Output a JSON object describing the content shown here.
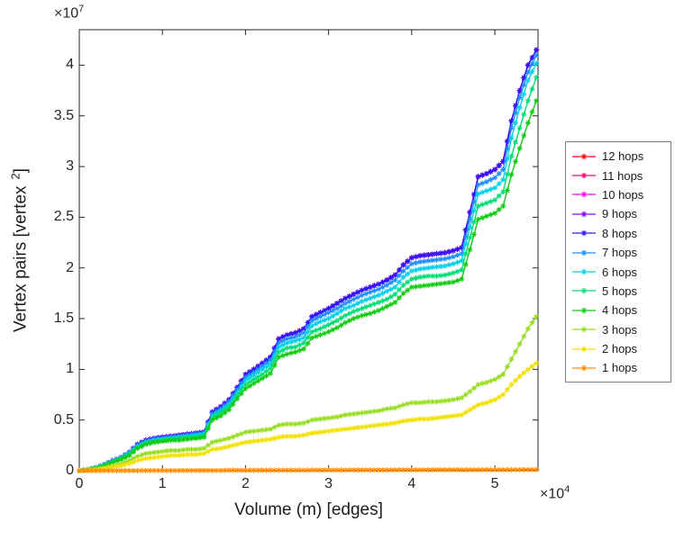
{
  "figure": {
    "background": "#ffffff",
    "axis_color": "#262626",
    "x_axis": {
      "label": "Volume (m) [edges]",
      "exponent_base": "×10",
      "exponent_power": "4",
      "ticks": [
        0,
        1,
        2,
        3,
        4,
        5
      ],
      "tick_labels": [
        "0",
        "1",
        "2",
        "3",
        "4",
        "5"
      ],
      "lim": [
        0,
        5.52
      ]
    },
    "y_axis": {
      "label_main": "Vertex pairs [vertex",
      "label_sup": "2",
      "label_close": "]",
      "exponent_base": "×10",
      "exponent_power": "7",
      "ticks": [
        0,
        0.5,
        1,
        1.5,
        2,
        2.5,
        3,
        3.5,
        4
      ],
      "tick_labels": [
        "0",
        "0.5",
        "1",
        "1.5",
        "2",
        "2.5",
        "3",
        "3.5",
        "4"
      ],
      "lim": [
        0,
        4.35
      ]
    }
  },
  "chart_data": {
    "type": "line",
    "title": "",
    "xlabel": "Volume (m) [edges]",
    "ylabel": "Vertex pairs [vertex^2]",
    "x_units": "edges (values in units of 1e4)",
    "y_units": "vertex pairs (values in units of 1e7)",
    "xlim": [
      0,
      5.52
    ],
    "ylim": [
      0,
      4.35
    ],
    "grid": false,
    "legend_position": "right-outside",
    "marker": "asterisk",
    "x": [
      0,
      0.1,
      0.2,
      0.3,
      0.4,
      0.5,
      0.6,
      0.7,
      0.8,
      0.9,
      1,
      1.1,
      1.2,
      1.3,
      1.4,
      1.5,
      1.6,
      1.7,
      1.8,
      1.9,
      2,
      2.1,
      2.2,
      2.3,
      2.4,
      2.5,
      2.6,
      2.7,
      2.8,
      2.9,
      3,
      3.1,
      3.2,
      3.3,
      3.4,
      3.5,
      3.6,
      3.7,
      3.8,
      3.9,
      4,
      4.1,
      4.2,
      4.3,
      4.4,
      4.5,
      4.6,
      4.7,
      4.8,
      4.9,
      5,
      5.1,
      5.2,
      5.3,
      5.4,
      5.5
    ],
    "series": [
      {
        "name": "12 hops",
        "color": "#ff0000",
        "values": [
          0,
          0.01,
          0.03,
          0.06,
          0.1,
          0.13,
          0.18,
          0.26,
          0.3,
          0.32,
          0.33,
          0.34,
          0.35,
          0.36,
          0.37,
          0.38,
          0.58,
          0.63,
          0.7,
          0.82,
          0.95,
          1,
          1.06,
          1.12,
          1.3,
          1.34,
          1.36,
          1.4,
          1.52,
          1.56,
          1.6,
          1.65,
          1.7,
          1.74,
          1.78,
          1.81,
          1.84,
          1.88,
          1.93,
          2.03,
          2.1,
          2.12,
          2.13,
          2.14,
          2.15,
          2.17,
          2.2,
          2.55,
          2.9,
          2.93,
          2.97,
          3.05,
          3.45,
          3.75,
          4,
          4.15
        ]
      },
      {
        "name": "11 hops",
        "color": "#ff0073",
        "values": [
          0,
          0.01,
          0.03,
          0.06,
          0.1,
          0.13,
          0.18,
          0.26,
          0.3,
          0.32,
          0.33,
          0.34,
          0.35,
          0.36,
          0.37,
          0.38,
          0.58,
          0.63,
          0.7,
          0.82,
          0.95,
          1,
          1.06,
          1.12,
          1.3,
          1.34,
          1.36,
          1.4,
          1.52,
          1.56,
          1.6,
          1.65,
          1.7,
          1.74,
          1.78,
          1.81,
          1.84,
          1.88,
          1.93,
          2.03,
          2.1,
          2.12,
          2.13,
          2.14,
          2.15,
          2.17,
          2.2,
          2.55,
          2.9,
          2.93,
          2.97,
          3.05,
          3.45,
          3.75,
          4,
          4.15
        ]
      },
      {
        "name": "10 hops",
        "color": "#ff00e6",
        "values": [
          0,
          0.01,
          0.03,
          0.06,
          0.1,
          0.13,
          0.18,
          0.26,
          0.3,
          0.32,
          0.33,
          0.34,
          0.35,
          0.36,
          0.37,
          0.38,
          0.58,
          0.63,
          0.7,
          0.82,
          0.95,
          1,
          1.06,
          1.12,
          1.3,
          1.34,
          1.36,
          1.4,
          1.52,
          1.56,
          1.6,
          1.65,
          1.7,
          1.74,
          1.78,
          1.81,
          1.84,
          1.88,
          1.93,
          2.03,
          2.1,
          2.12,
          2.13,
          2.14,
          2.15,
          2.17,
          2.2,
          2.55,
          2.9,
          2.93,
          2.97,
          3.05,
          3.45,
          3.75,
          4,
          4.15
        ]
      },
      {
        "name": "9 hops",
        "color": "#8800ff",
        "values": [
          0,
          0.01,
          0.03,
          0.06,
          0.1,
          0.13,
          0.18,
          0.26,
          0.3,
          0.32,
          0.33,
          0.34,
          0.35,
          0.36,
          0.37,
          0.38,
          0.58,
          0.63,
          0.7,
          0.82,
          0.95,
          1,
          1.06,
          1.12,
          1.3,
          1.34,
          1.36,
          1.4,
          1.52,
          1.56,
          1.6,
          1.65,
          1.7,
          1.74,
          1.78,
          1.81,
          1.84,
          1.88,
          1.93,
          2.03,
          2.1,
          2.12,
          2.13,
          2.14,
          2.15,
          2.17,
          2.2,
          2.55,
          2.9,
          2.93,
          2.97,
          3.05,
          3.45,
          3.75,
          4,
          4.15
        ]
      },
      {
        "name": "8 hops",
        "color": "#2b16ff",
        "values": [
          0,
          0.01,
          0.03,
          0.06,
          0.1,
          0.13,
          0.18,
          0.26,
          0.3,
          0.32,
          0.33,
          0.34,
          0.35,
          0.36,
          0.37,
          0.38,
          0.58,
          0.63,
          0.7,
          0.82,
          0.95,
          1,
          1.06,
          1.12,
          1.3,
          1.34,
          1.36,
          1.4,
          1.52,
          1.56,
          1.6,
          1.65,
          1.7,
          1.74,
          1.78,
          1.81,
          1.84,
          1.88,
          1.93,
          2.03,
          2.1,
          2.12,
          2.13,
          2.14,
          2.15,
          2.17,
          2.2,
          2.55,
          2.9,
          2.93,
          2.97,
          3.05,
          3.45,
          3.75,
          4,
          4.15
        ]
      },
      {
        "name": "7 hops",
        "color": "#1f8fff",
        "values": [
          0,
          0.01,
          0.03,
          0.06,
          0.1,
          0.13,
          0.18,
          0.25,
          0.29,
          0.31,
          0.32,
          0.33,
          0.34,
          0.35,
          0.36,
          0.37,
          0.56,
          0.61,
          0.68,
          0.8,
          0.92,
          0.97,
          1.03,
          1.09,
          1.26,
          1.3,
          1.32,
          1.36,
          1.48,
          1.52,
          1.56,
          1.6,
          1.65,
          1.69,
          1.73,
          1.76,
          1.79,
          1.83,
          1.88,
          1.97,
          2.04,
          2.06,
          2.07,
          2.08,
          2.09,
          2.11,
          2.14,
          2.48,
          2.82,
          2.85,
          2.89,
          2.97,
          3.38,
          3.68,
          3.93,
          4.1
        ]
      },
      {
        "name": "6 hops",
        "color": "#00d0e8",
        "values": [
          0,
          0.01,
          0.03,
          0.06,
          0.09,
          0.12,
          0.17,
          0.24,
          0.28,
          0.3,
          0.31,
          0.32,
          0.33,
          0.34,
          0.35,
          0.36,
          0.54,
          0.59,
          0.65,
          0.77,
          0.89,
          0.94,
          1,
          1.05,
          1.22,
          1.26,
          1.28,
          1.31,
          1.43,
          1.47,
          1.5,
          1.55,
          1.6,
          1.63,
          1.67,
          1.7,
          1.73,
          1.77,
          1.81,
          1.91,
          1.97,
          1.99,
          2,
          2.01,
          2.02,
          2.04,
          2.07,
          2.4,
          2.73,
          2.76,
          2.79,
          2.87,
          3.28,
          3.58,
          3.85,
          4.02
        ]
      },
      {
        "name": "5 hops",
        "color": "#00dd77",
        "values": [
          0,
          0.01,
          0.03,
          0.05,
          0.09,
          0.12,
          0.16,
          0.23,
          0.27,
          0.29,
          0.3,
          0.31,
          0.32,
          0.33,
          0.33,
          0.34,
          0.52,
          0.57,
          0.63,
          0.74,
          0.85,
          0.9,
          0.95,
          1.01,
          1.17,
          1.21,
          1.22,
          1.26,
          1.37,
          1.4,
          1.44,
          1.48,
          1.53,
          1.57,
          1.6,
          1.63,
          1.66,
          1.69,
          1.74,
          1.83,
          1.89,
          1.91,
          1.92,
          1.92,
          1.93,
          1.95,
          1.98,
          2.3,
          2.61,
          2.64,
          2.67,
          2.75,
          3.1,
          3.38,
          3.65,
          3.88
        ]
      },
      {
        "name": "4 hops",
        "color": "#11cc11",
        "values": [
          0,
          0.01,
          0.02,
          0.05,
          0.08,
          0.11,
          0.15,
          0.22,
          0.26,
          0.28,
          0.29,
          0.3,
          0.3,
          0.31,
          0.32,
          0.33,
          0.5,
          0.54,
          0.6,
          0.71,
          0.81,
          0.86,
          0.91,
          0.96,
          1.12,
          1.15,
          1.17,
          1.2,
          1.31,
          1.34,
          1.37,
          1.41,
          1.46,
          1.5,
          1.53,
          1.55,
          1.58,
          1.62,
          1.66,
          1.75,
          1.81,
          1.82,
          1.83,
          1.84,
          1.85,
          1.86,
          1.89,
          2.18,
          2.48,
          2.51,
          2.54,
          2.61,
          2.92,
          3.18,
          3.43,
          3.65
        ]
      },
      {
        "name": "3 hops",
        "color": "#99dd22",
        "values": [
          0,
          0.005,
          0.015,
          0.03,
          0.05,
          0.07,
          0.1,
          0.14,
          0.17,
          0.18,
          0.19,
          0.2,
          0.2,
          0.21,
          0.21,
          0.22,
          0.28,
          0.3,
          0.32,
          0.35,
          0.38,
          0.39,
          0.4,
          0.41,
          0.45,
          0.46,
          0.46,
          0.47,
          0.5,
          0.51,
          0.52,
          0.53,
          0.55,
          0.56,
          0.57,
          0.58,
          0.59,
          0.61,
          0.62,
          0.65,
          0.67,
          0.67,
          0.68,
          0.68,
          0.69,
          0.7,
          0.72,
          0.78,
          0.85,
          0.87,
          0.9,
          0.95,
          1.1,
          1.25,
          1.4,
          1.52
        ]
      },
      {
        "name": "2 hops",
        "color": "#f2e100",
        "values": [
          0,
          0.004,
          0.01,
          0.02,
          0.035,
          0.05,
          0.07,
          0.1,
          0.12,
          0.13,
          0.14,
          0.15,
          0.15,
          0.16,
          0.16,
          0.17,
          0.21,
          0.22,
          0.24,
          0.26,
          0.28,
          0.29,
          0.3,
          0.31,
          0.33,
          0.34,
          0.34,
          0.35,
          0.37,
          0.38,
          0.39,
          0.4,
          0.41,
          0.42,
          0.43,
          0.44,
          0.45,
          0.46,
          0.47,
          0.49,
          0.5,
          0.51,
          0.51,
          0.52,
          0.53,
          0.54,
          0.55,
          0.6,
          0.65,
          0.67,
          0.7,
          0.75,
          0.85,
          0.93,
          1,
          1.06
        ]
      },
      {
        "name": "1 hops",
        "color": "#ff8c00",
        "values": [
          0,
          0,
          0,
          0.001,
          0.001,
          0.001,
          0.001,
          0.001,
          0.002,
          0.002,
          0.002,
          0.002,
          0.002,
          0.003,
          0.003,
          0.003,
          0.003,
          0.003,
          0.004,
          0.004,
          0.004,
          0.004,
          0.004,
          0.005,
          0.005,
          0.005,
          0.005,
          0.005,
          0.006,
          0.006,
          0.006,
          0.006,
          0.006,
          0.007,
          0.007,
          0.007,
          0.007,
          0.007,
          0.008,
          0.008,
          0.008,
          0.008,
          0.008,
          0.009,
          0.009,
          0.009,
          0.009,
          0.009,
          0.01,
          0.01,
          0.01,
          0.01,
          0.01,
          0.011,
          0.011,
          0.011
        ]
      }
    ]
  }
}
